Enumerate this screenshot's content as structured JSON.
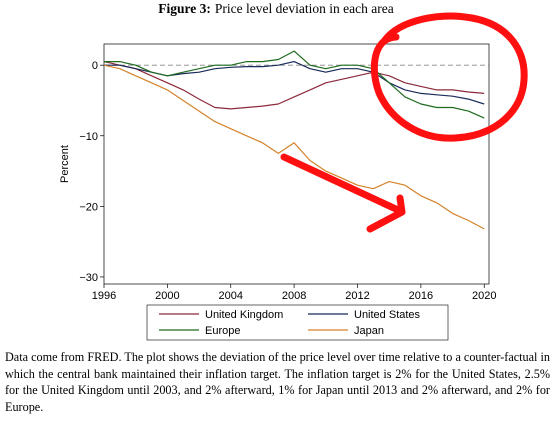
{
  "figure": {
    "label": "Figure 3:",
    "title": "Price level deviation in each area"
  },
  "caption": "Data come from FRED. The plot shows the deviation of the price level over time relative to a counter-factual in which the central bank maintained their inflation target. The inflation target is 2% for the United States, 2.5% for the United Kingdom until 2003, and 2% afterward, 1% for Japan until 2013 and 2% afterward, and 2% for Europe.",
  "chart_data": {
    "type": "line",
    "xlabel": "",
    "ylabel": "Percent",
    "xlim": [
      1996,
      2020.3
    ],
    "ylim": [
      -31,
      3
    ],
    "x_ticks": [
      1996,
      2000,
      2004,
      2008,
      2012,
      2016,
      2020
    ],
    "y_ticks": [
      0,
      -10,
      -20,
      -30
    ],
    "y_tick_labels": [
      "0",
      "−10",
      "−20",
      "−30"
    ],
    "reference_line": 0,
    "grid": false,
    "legend": {
      "placement": "bottom",
      "columns": 2
    },
    "series": [
      {
        "name": "United Kingdom",
        "color": "#8b2a3a",
        "x": [
          1996,
          1997,
          1998,
          1999,
          2000,
          2001,
          2002,
          2003,
          2004,
          2005,
          2006,
          2007,
          2008,
          2009,
          2010,
          2011,
          2012,
          2013,
          2014,
          2015,
          2016,
          2017,
          2018,
          2019,
          2020
        ],
        "y": [
          0.5,
          0,
          -0.5,
          -1.5,
          -2.5,
          -3.5,
          -4.8,
          -6,
          -6.2,
          -6,
          -5.8,
          -5.5,
          -4.5,
          -3.5,
          -2.5,
          -2,
          -1.5,
          -1,
          -1.5,
          -2.5,
          -3,
          -3.5,
          -3.5,
          -3.8,
          -4
        ]
      },
      {
        "name": "United States",
        "color": "#1a2a5a",
        "x": [
          1996,
          1997,
          1998,
          1999,
          2000,
          2001,
          2002,
          2003,
          2004,
          2005,
          2006,
          2007,
          2008,
          2009,
          2010,
          2011,
          2012,
          2013,
          2014,
          2015,
          2016,
          2017,
          2018,
          2019,
          2020
        ],
        "y": [
          0,
          0,
          -0.5,
          -1,
          -1.5,
          -1.2,
          -1,
          -0.5,
          -0.3,
          -0.2,
          -0.2,
          0,
          0.5,
          -0.5,
          -1,
          -0.5,
          -0.5,
          -1,
          -2.5,
          -3.5,
          -4,
          -4.2,
          -4.4,
          -4.8,
          -5.5
        ]
      },
      {
        "name": "Europe",
        "color": "#1e6b1e",
        "x": [
          1996,
          1997,
          1998,
          1999,
          2000,
          2001,
          2002,
          2003,
          2004,
          2005,
          2006,
          2007,
          2008,
          2009,
          2010,
          2011,
          2012,
          2013,
          2014,
          2015,
          2016,
          2017,
          2018,
          2019,
          2020
        ],
        "y": [
          0.5,
          0.5,
          0,
          -1,
          -1.5,
          -1,
          -0.5,
          0,
          0,
          0.5,
          0.5,
          0.8,
          2,
          0,
          -0.5,
          0,
          0,
          -0.5,
          -2.5,
          -4.5,
          -5.5,
          -6,
          -6,
          -6.5,
          -7.5
        ]
      },
      {
        "name": "Japan",
        "color": "#d4822a",
        "x": [
          1996,
          1997,
          1998,
          1999,
          2000,
          2001,
          2002,
          2003,
          2004,
          2005,
          2006,
          2007,
          2008,
          2009,
          2010,
          2011,
          2012,
          2013,
          2014,
          2015,
          2016,
          2017,
          2018,
          2019,
          2020
        ],
        "y": [
          0,
          -0.5,
          -1.5,
          -2.5,
          -3.5,
          -5,
          -6.5,
          -8,
          -9,
          -10,
          -11,
          -12.5,
          -11,
          -13.5,
          -15,
          -16,
          -17,
          -17.5,
          -16.5,
          -17,
          -18.5,
          -19.5,
          -21,
          -22,
          -23.2
        ]
      }
    ]
  }
}
